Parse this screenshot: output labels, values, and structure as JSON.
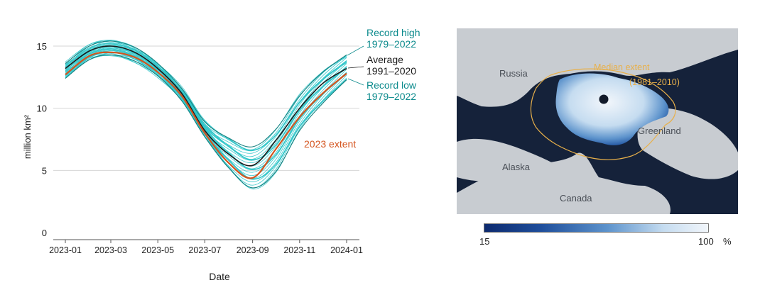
{
  "chart_data": {
    "type": "line",
    "xlabel": "Date",
    "ylabel": "million km²",
    "x_ticks": [
      "2023-01",
      "2023-03",
      "2023-05",
      "2023-07",
      "2023-09",
      "2023-11",
      "2024-01"
    ],
    "y_ticks": [
      0,
      5,
      10,
      15
    ],
    "ylim": [
      0,
      15.5
    ],
    "xlim": [
      "2023-01-01",
      "2024-01-01"
    ],
    "grid": "horizontal",
    "annotations": {
      "record_high": [
        "Record high",
        "1979–2022"
      ],
      "average": [
        "Average",
        "1991–2020"
      ],
      "record_low": [
        "Record low",
        "1979–2022"
      ],
      "extent_2023": "2023 extent"
    },
    "colors": {
      "historical": "#2bc4c8",
      "envelope": "#16807f",
      "average": "#1a1a1a",
      "year_2023": "#d4541e",
      "annotation_teal": "#0b8a8c"
    },
    "x": [
      "2023-01-01",
      "2023-02-01",
      "2023-03-01",
      "2023-04-01",
      "2023-05-01",
      "2023-06-01",
      "2023-07-01",
      "2023-08-01",
      "2023-09-01",
      "2023-10-01",
      "2023-11-01",
      "2023-12-01",
      "2024-01-01"
    ],
    "series": [
      {
        "name": "Record high",
        "values": [
          13.6,
          15.0,
          15.4,
          14.9,
          13.6,
          11.6,
          8.9,
          7.6,
          6.9,
          8.3,
          11.0,
          12.9,
          14.3
        ]
      },
      {
        "name": "Average",
        "values": [
          13.2,
          14.6,
          15.0,
          14.5,
          13.2,
          11.2,
          8.2,
          6.3,
          5.4,
          7.4,
          10.0,
          12.0,
          13.2
        ]
      },
      {
        "name": "Record low",
        "values": [
          12.4,
          13.9,
          14.3,
          13.8,
          12.6,
          10.6,
          7.7,
          5.2,
          3.6,
          4.9,
          8.2,
          10.4,
          12.3
        ]
      },
      {
        "name": "2023 extent",
        "values": [
          12.7,
          14.2,
          14.5,
          14.1,
          12.9,
          11.0,
          8.0,
          5.6,
          4.4,
          6.7,
          9.3,
          11.2,
          12.8
        ]
      }
    ]
  },
  "map": {
    "labels": {
      "russia": "Russia",
      "greenland": "Greenland",
      "alaska": "Alaska",
      "canada": "Canada"
    },
    "median_extent": [
      "Median extent",
      "(1981–2010)"
    ],
    "colorbar": {
      "min": "15",
      "max": "100",
      "unit": "%"
    },
    "colors": {
      "ocean": "#15223a",
      "land": "#c8ccd1",
      "ice_low": "#0d2a6e",
      "ice_high": "#f2f6fb",
      "median_line": "#e8b04a"
    }
  }
}
